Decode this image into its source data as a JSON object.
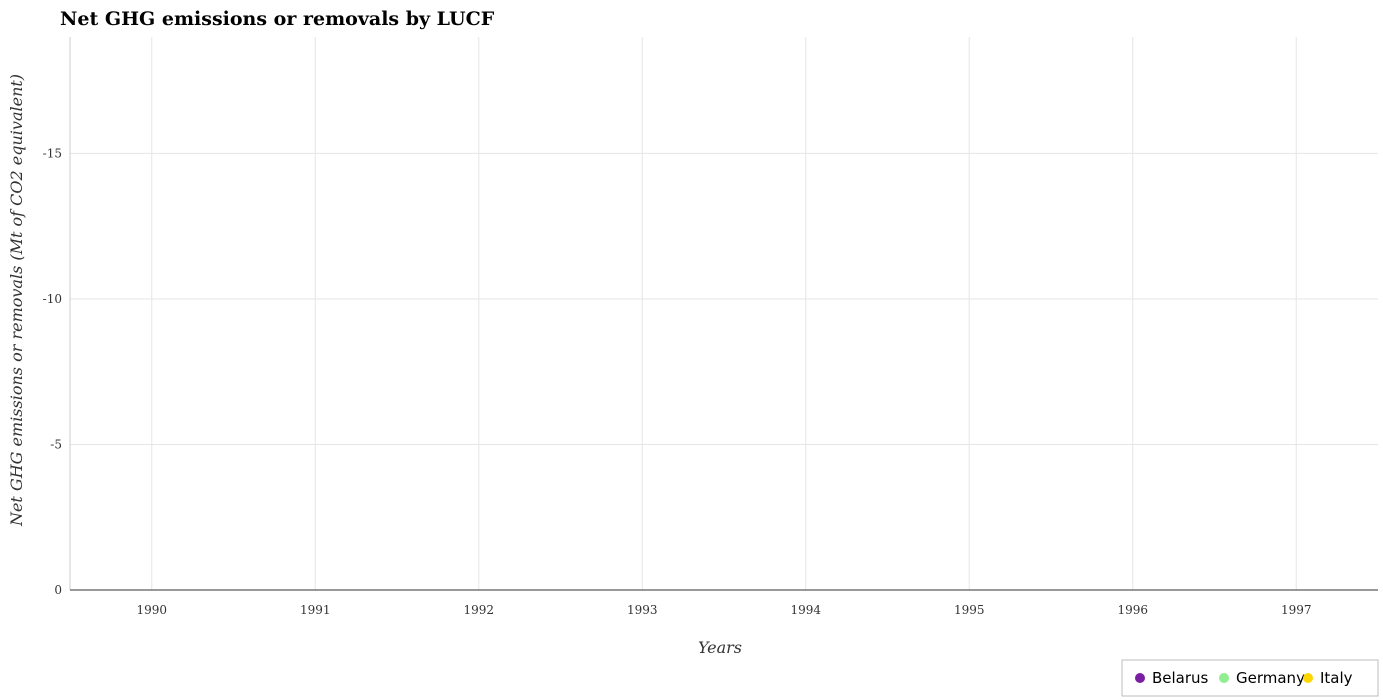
{
  "chart_data": {
    "type": "scatter",
    "title": "Net GHG emissions or removals by LUCF",
    "xlabel": "Years",
    "ylabel": "Net GHG emissions or removals (Mt of CO2 equivalent)",
    "x": [
      "1990",
      "1991",
      "1992",
      "1993",
      "1994",
      "1995",
      "1996",
      "1997"
    ],
    "y_ticks": [
      "0",
      "-5",
      "-10",
      "-15"
    ],
    "y_tick_values": [
      0,
      -5,
      -10,
      -15
    ],
    "ylim": [
      0,
      -19
    ],
    "y_inverted": true,
    "grid": true,
    "legend_position": "bottom-right",
    "series": [
      {
        "name": "Belarus",
        "color": "#7b1fa2",
        "values": [
          null,
          null,
          null,
          null,
          null,
          null,
          null,
          null
        ]
      },
      {
        "name": "Germany",
        "color": "#90ee90",
        "values": [
          null,
          null,
          null,
          null,
          null,
          null,
          null,
          null
        ]
      },
      {
        "name": "Italy",
        "color": "#ffd700",
        "values": [
          null,
          null,
          null,
          null,
          null,
          null,
          null,
          null
        ]
      }
    ]
  }
}
